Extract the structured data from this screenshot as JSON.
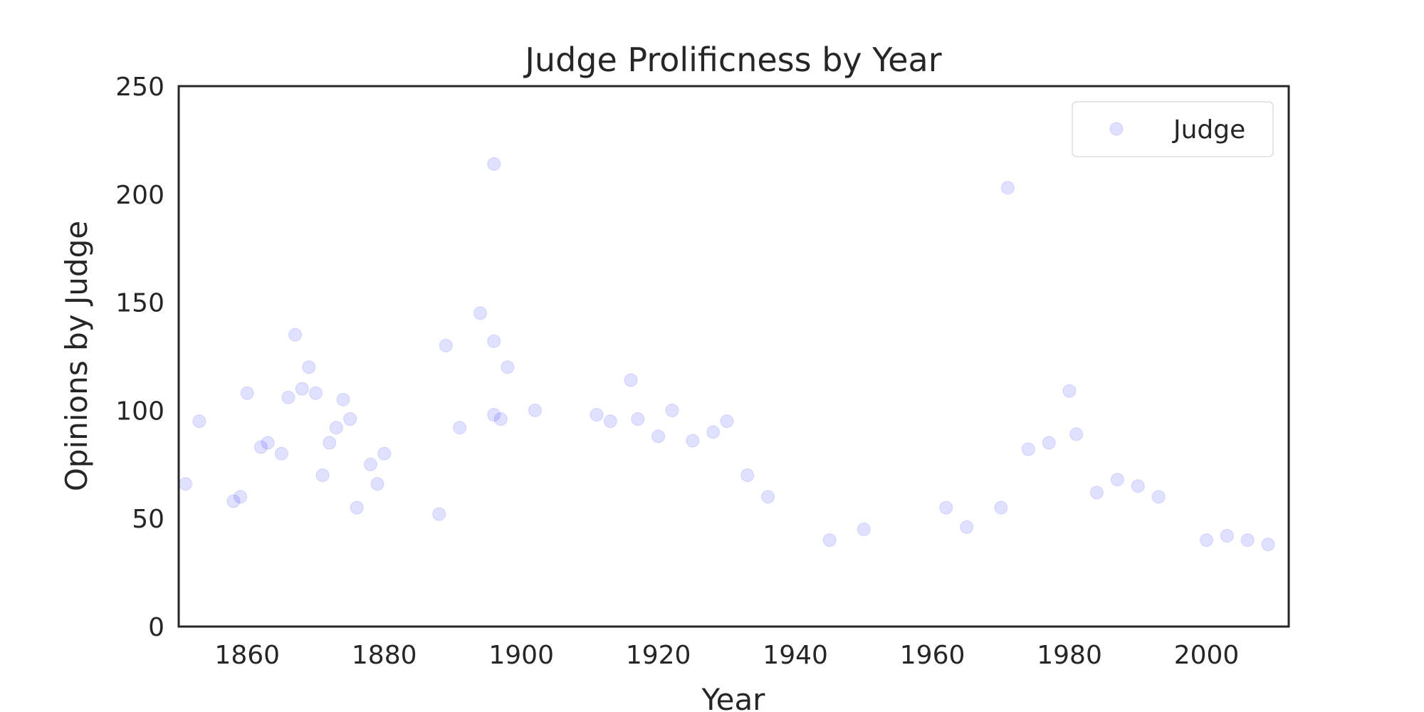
{
  "chart_data": {
    "type": "scatter",
    "title": "Judge Prolificness by Year",
    "xlabel": "Year",
    "ylabel": "Opinions by Judge",
    "xlim": [
      1850,
      2012
    ],
    "ylim": [
      0,
      250
    ],
    "xticks": [
      1860,
      1880,
      1900,
      1920,
      1940,
      1960,
      1980,
      2000
    ],
    "yticks": [
      0,
      50,
      100,
      150,
      200,
      250
    ],
    "grid": false,
    "legend": {
      "position": "top-right",
      "entries": [
        "Judge"
      ]
    },
    "marker": {
      "color": "#0000ff",
      "alpha": 0.12
    },
    "series": [
      {
        "name": "Judge",
        "x": [
          1896,
          1971,
          1894,
          1867,
          1896,
          1889,
          1869,
          1898,
          1916,
          1851,
          1853,
          1858,
          1859,
          1860,
          1862,
          1863,
          1865,
          1866,
          1868,
          1870,
          1871,
          1872,
          1873,
          1874,
          1875,
          1876,
          1878,
          1879,
          1880,
          1888,
          1891,
          1896,
          1897,
          1902,
          1911,
          1913,
          1917,
          1920,
          1922,
          1925,
          1928,
          1930,
          1933,
          1936,
          1945,
          1950,
          1962,
          1965,
          1970,
          1974,
          1977,
          1980,
          1981,
          1984,
          1987,
          1990,
          1993,
          2000,
          2003,
          2006,
          2009
        ],
        "y": [
          214,
          203,
          145,
          135,
          132,
          130,
          120,
          120,
          114,
          66,
          95,
          58,
          60,
          108,
          83,
          85,
          80,
          106,
          110,
          108,
          70,
          85,
          92,
          105,
          96,
          55,
          75,
          66,
          80,
          52,
          92,
          98,
          96,
          100,
          98,
          95,
          96,
          88,
          100,
          86,
          90,
          95,
          70,
          60,
          40,
          45,
          55,
          46,
          55,
          82,
          85,
          109,
          89,
          62,
          68,
          65,
          60,
          40,
          42,
          40,
          38
        ]
      }
    ]
  }
}
